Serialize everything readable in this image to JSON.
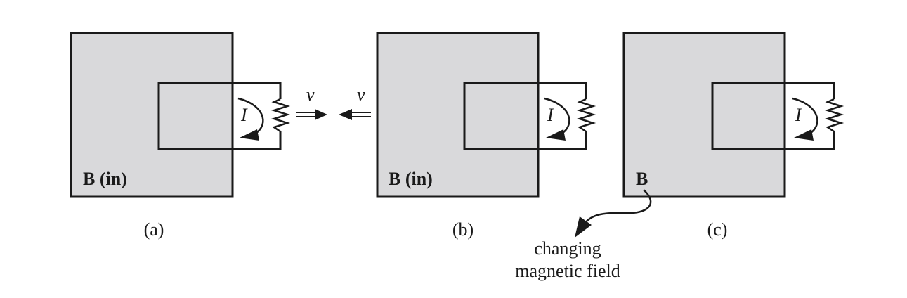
{
  "colors": {
    "field_fill": "#d9d9db",
    "stroke": "#1a1a1a",
    "background": "#ffffff"
  },
  "panels": [
    {
      "field_label": "B (in)",
      "current_label": "I",
      "caption": "(a)",
      "velocity_label": "v",
      "motion": "loop moves right"
    },
    {
      "field_label": "B (in)",
      "current_label": "I",
      "caption": "(b)",
      "velocity_label": "v",
      "motion": "magnet moves left"
    },
    {
      "field_label": "B",
      "current_label": "I",
      "caption": "(c)",
      "annotation_line1": "changing",
      "annotation_line2": "magnetic field"
    }
  ]
}
